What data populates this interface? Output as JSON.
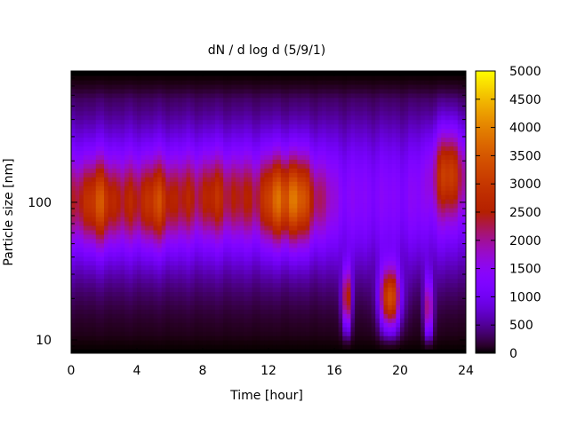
{
  "chart_data": {
    "type": "heatmap",
    "title": "dN / d log d (5/9/1)",
    "xlabel": "Time [hour]",
    "ylabel": "Particle size [nm]",
    "x_range": [
      0,
      24
    ],
    "x_ticks": [
      0,
      4,
      8,
      12,
      16,
      20,
      24
    ],
    "y_scale": "log",
    "y_range": [
      8,
      900
    ],
    "y_ticks": [
      {
        "value": 10,
        "label": "10"
      },
      {
        "value": 100,
        "label": "100"
      }
    ],
    "colorbar": {
      "range": [
        0,
        5000
      ],
      "ticks": [
        0,
        500,
        1000,
        1500,
        2000,
        2500,
        3000,
        3500,
        4000,
        4500,
        5000
      ],
      "palette": "gnuplot (black-purple-red-orange-yellow)"
    },
    "grid": false,
    "features": [
      {
        "time": [
          0,
          3.2
        ],
        "peak_size_nm": 100,
        "peak_value": 3600
      },
      {
        "time": [
          3.6,
          6.5
        ],
        "peak_size_nm": 100,
        "peak_value": 3300
      },
      {
        "time": [
          6.5,
          11
        ],
        "peak_size_nm": 110,
        "peak_value": 3000
      },
      {
        "time": [
          11.5,
          15
        ],
        "peak_size_nm": 105,
        "peak_value": 4300
      },
      {
        "time": [
          16.5,
          17
        ],
        "peak_size_nm": 20,
        "peak_value": 3500
      },
      {
        "time": [
          18.8,
          20
        ],
        "peak_size_nm": 20,
        "peak_value": 3800
      },
      {
        "time": [
          21.6,
          21.9
        ],
        "peak_size_nm": 17,
        "peak_value": 2800
      },
      {
        "time": [
          22,
          24
        ],
        "peak_size_nm": 170,
        "peak_value": 3500
      }
    ]
  }
}
